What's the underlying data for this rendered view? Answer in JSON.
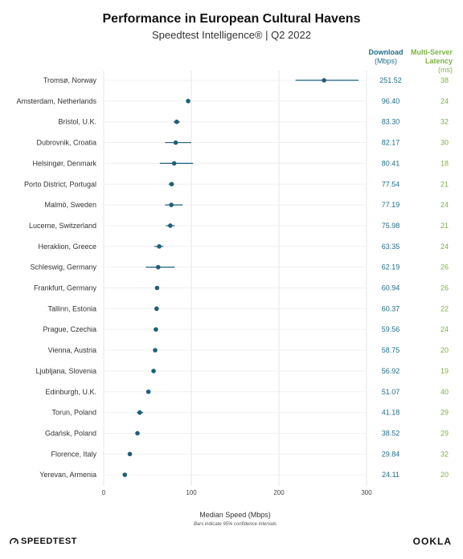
{
  "title": "Performance in European Cultural Havens",
  "subtitle": "Speedtest Intelligence® | Q2 2022",
  "headers": {
    "download_main": "Download",
    "download_unit": "(Mbps)",
    "latency_main": "Multi-Server Latency",
    "latency_unit": "(ms)"
  },
  "xlabel": "Median Speed (Mbps)",
  "note": "Bars indicate 95% confidence intervals",
  "branding": {
    "left": "SPEEDTEST",
    "right": "OOKLA"
  },
  "colors": {
    "point": "#1f5f7a",
    "download": "#1f6f8b",
    "latency": "#7cb342",
    "grid": "#e6e6e6"
  },
  "chart_data": {
    "type": "scatter",
    "xlim": [
      0,
      300
    ],
    "xticks": [
      0,
      100,
      200,
      300
    ],
    "grid": true,
    "categories": [
      "Tromsø, Norway",
      "Amsterdam, Netherlands",
      "Bristol, U.K.",
      "Dubrovnik, Croatia",
      "Helsingør, Denmark",
      "Porto District, Portugal",
      "Malmö, Sweden",
      "Lucerne, Switzerland",
      "Heraklion, Greece",
      "Schleswig, Germany",
      "Frankfurt, Germany",
      "Tallinn, Estonia",
      "Prague, Czechia",
      "Vienna, Austria",
      "Ljubljana, Slovenia",
      "Edinburgh, U.K.",
      "Torun, Poland",
      "Gdańsk, Poland",
      "Florence, Italy",
      "Yerevan, Armenia"
    ],
    "download": [
      "251.52",
      "96.40",
      "83.30",
      "82.17",
      "80.41",
      "77.54",
      "77.19",
      "75.98",
      "63.35",
      "62.19",
      "60.94",
      "60.37",
      "59.56",
      "58.75",
      "56.92",
      "51.07",
      "41.18",
      "38.52",
      "29.84",
      "24.11"
    ],
    "latency": [
      "38",
      "24",
      "32",
      "30",
      "18",
      "21",
      "24",
      "21",
      "24",
      "26",
      "26",
      "22",
      "24",
      "20",
      "19",
      "40",
      "29",
      "29",
      "32",
      "20"
    ],
    "values": [
      251.52,
      96.4,
      83.3,
      82.17,
      80.41,
      77.54,
      77.19,
      75.98,
      63.35,
      62.19,
      60.94,
      60.37,
      59.56,
      58.75,
      56.92,
      51.07,
      41.18,
      38.52,
      29.84,
      24.11
    ],
    "ci_low": [
      219,
      95,
      80,
      70,
      64,
      74,
      70,
      71,
      58,
      48,
      60,
      59,
      59,
      58,
      55,
      50,
      38,
      38,
      29,
      23
    ],
    "ci_high": [
      291,
      98,
      87,
      100,
      102,
      80,
      90,
      81,
      68,
      81,
      62,
      62,
      61,
      60,
      59,
      52,
      45,
      39,
      31,
      25
    ]
  }
}
